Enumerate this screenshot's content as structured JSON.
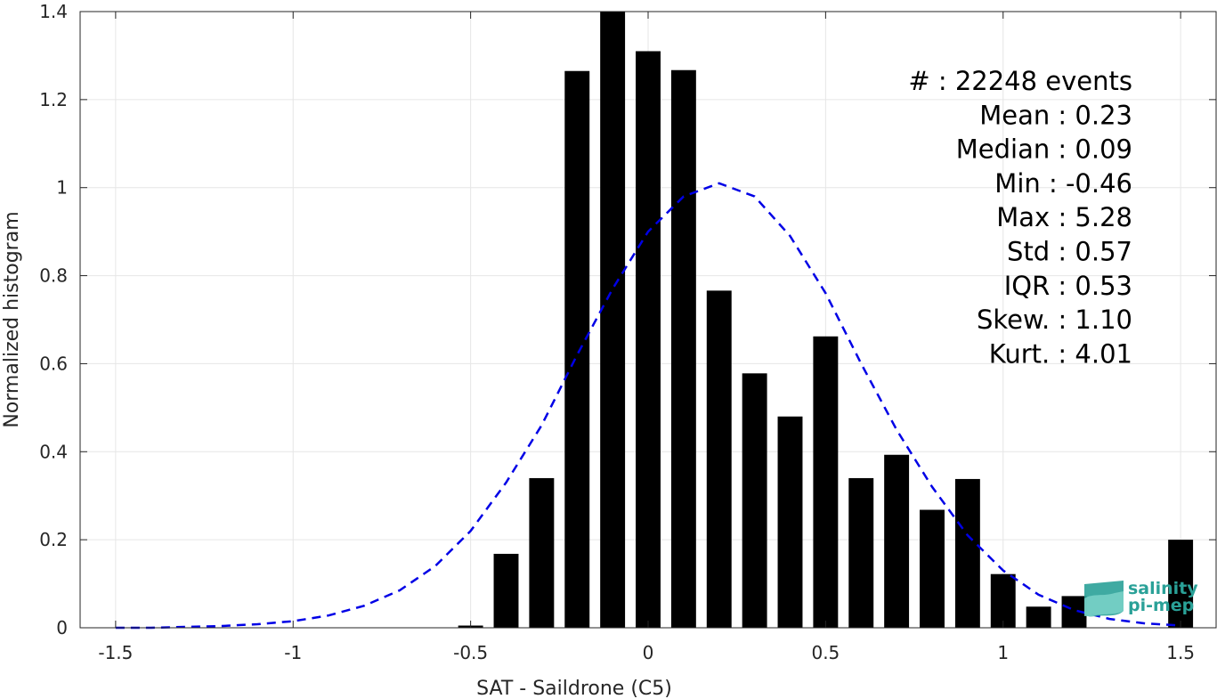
{
  "chart_data": {
    "type": "bar",
    "xlabel": "SAT - Saildrone (C5)",
    "ylabel": "Normalized histogram",
    "xlim": [
      -1.6,
      1.6
    ],
    "ylim": [
      0,
      1.4
    ],
    "xticks": [
      -1.5,
      -1,
      -0.5,
      0,
      0.5,
      1,
      1.5
    ],
    "xtick_labels": [
      "-1.5",
      "-1",
      "-0.5",
      "0",
      "0.5",
      "1",
      "1.5"
    ],
    "yticks": [
      0,
      0.2,
      0.4,
      0.6,
      0.8,
      1,
      1.2,
      1.4
    ],
    "ytick_labels": [
      "0",
      "0.2",
      "0.4",
      "0.6",
      "0.8",
      "1",
      "1.2",
      "1.4"
    ],
    "grid": true,
    "bar_width": 0.07,
    "bars": {
      "x": [
        -0.5,
        -0.4,
        -0.3,
        -0.2,
        -0.1,
        0.0,
        0.1,
        0.2,
        0.3,
        0.4,
        0.5,
        0.6,
        0.7,
        0.8,
        0.9,
        1.0,
        1.1,
        1.2,
        1.5
      ],
      "values": [
        0.005,
        0.168,
        0.34,
        1.265,
        1.4,
        1.31,
        1.267,
        0.766,
        0.578,
        0.48,
        0.662,
        0.34,
        0.393,
        0.268,
        0.338,
        0.122,
        0.048,
        0.072,
        0.2
      ],
      "color": "#000000"
    },
    "fit_curve": {
      "style": "dashed",
      "color": "#0000e6",
      "x": [
        -1.5,
        -1.4,
        -1.3,
        -1.2,
        -1.1,
        -1.0,
        -0.9,
        -0.8,
        -0.7,
        -0.6,
        -0.5,
        -0.4,
        -0.3,
        -0.2,
        -0.1,
        0.0,
        0.1,
        0.2,
        0.3,
        0.4,
        0.5,
        0.6,
        0.7,
        0.8,
        0.9,
        1.0,
        1.1,
        1.2,
        1.3,
        1.4,
        1.5
      ],
      "y": [
        0.0,
        0.0,
        0.002,
        0.004,
        0.008,
        0.015,
        0.028,
        0.05,
        0.085,
        0.14,
        0.22,
        0.33,
        0.46,
        0.62,
        0.77,
        0.9,
        0.98,
        1.01,
        0.98,
        0.89,
        0.76,
        0.6,
        0.45,
        0.32,
        0.21,
        0.13,
        0.075,
        0.04,
        0.02,
        0.01,
        0.005
      ]
    },
    "stats": [
      {
        "label": "#  :",
        "value": "22248 events"
      },
      {
        "label": "Mean :",
        "value": "0.23"
      },
      {
        "label": "Median :",
        "value": "0.09"
      },
      {
        "label": "Min :",
        "value": "-0.46"
      },
      {
        "label": "Max :",
        "value": "5.28"
      },
      {
        "label": "Std :",
        "value": "0.57"
      },
      {
        "label": "IQR :",
        "value": "0.53"
      },
      {
        "label": "Skew. :",
        "value": "1.10"
      },
      {
        "label": "Kurt. :",
        "value": "4.01"
      }
    ]
  },
  "logo": {
    "line1": "salinity",
    "line2": "pi-mep",
    "color": "#2aa198"
  }
}
